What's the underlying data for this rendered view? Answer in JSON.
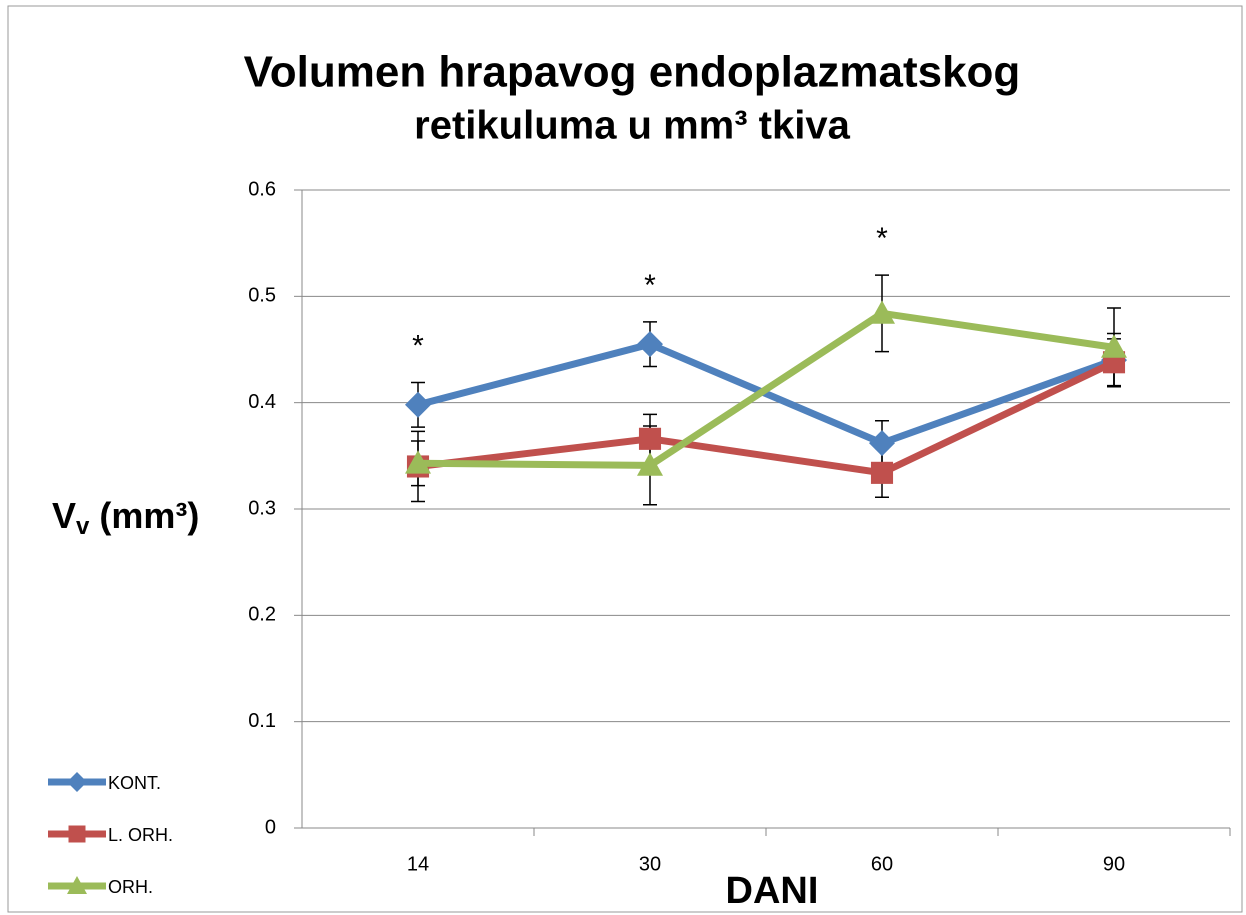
{
  "chart_data": {
    "type": "line",
    "title": [
      "Volumen hrapavog endoplazmatskog",
      "retikuluma u mm³ tkiva"
    ],
    "y_label": {
      "base": "V",
      "sub": "v",
      "rest": " (mm³)"
    },
    "x_label": "DANI",
    "categories": [
      "14",
      "30",
      "60",
      "90"
    ],
    "series": [
      {
        "name": "KONT.",
        "color": "#4f81bd",
        "marker": "diamond",
        "values": [
          0.398,
          0.455,
          0.362,
          0.44
        ],
        "errors": [
          0.021,
          0.021,
          0.021,
          0.025
        ]
      },
      {
        "name": "L. ORH.",
        "color": "#c0504d",
        "marker": "square",
        "values": [
          0.34,
          0.366,
          0.334,
          0.438
        ],
        "errors": [
          0.033,
          0.023,
          0.023,
          0.022
        ]
      },
      {
        "name": "ORH.",
        "color": "#9bbb59",
        "marker": "triangle",
        "values": [
          0.343,
          0.341,
          0.484,
          0.452
        ],
        "errors": [
          0.021,
          0.037,
          0.036,
          0.037
        ]
      }
    ],
    "annotations": [
      "*",
      "*",
      "*"
    ],
    "ylim": [
      0,
      0.6
    ],
    "yticks": [
      0,
      0.1,
      0.2,
      0.3,
      0.4,
      0.5,
      0.6
    ],
    "grid": true,
    "legend": "lower left"
  }
}
